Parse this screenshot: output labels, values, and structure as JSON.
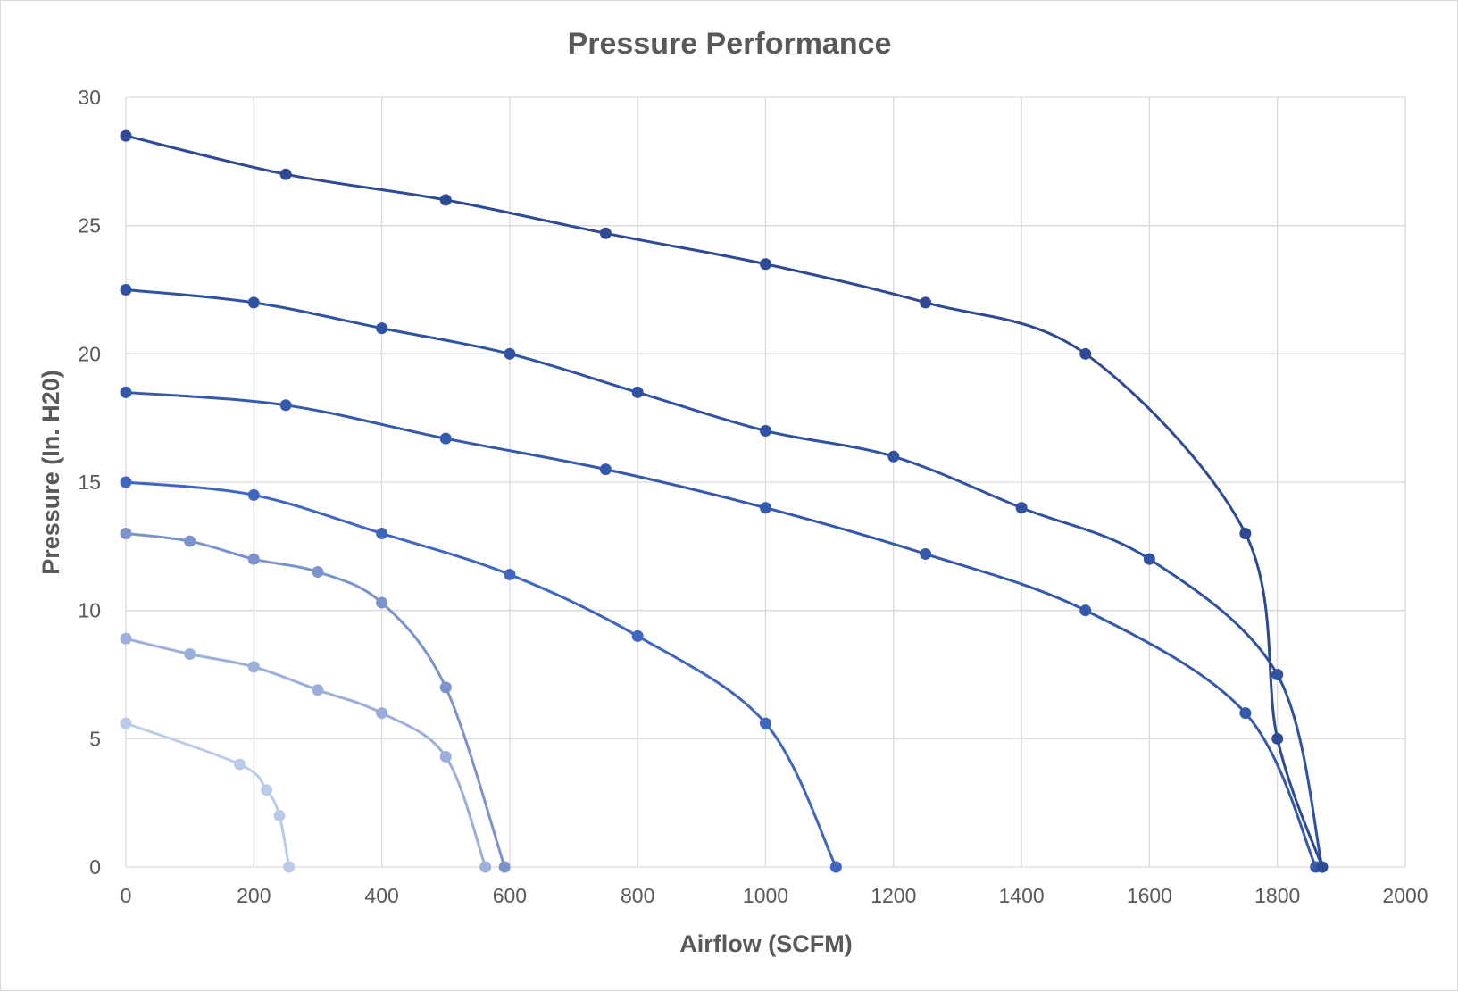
{
  "chart_data": {
    "type": "line",
    "title": "Pressure Performance",
    "xlabel": "Airflow (SCFM)",
    "ylabel": "Pressure (In. H20)",
    "xlim": [
      0,
      2000
    ],
    "ylim": [
      0,
      30
    ],
    "x_ticks": [
      "0",
      "200",
      "400",
      "600",
      "800",
      "1000",
      "1200",
      "1400",
      "1600",
      "1800",
      "2000"
    ],
    "y_ticks": [
      "0",
      "5",
      "10",
      "15",
      "20",
      "25",
      "30"
    ],
    "grid": true,
    "legend": "none",
    "smooth": true,
    "series": [
      {
        "color": "#2e4a94",
        "x": [
          0,
          250,
          500,
          750,
          1000,
          1250,
          1500,
          1750,
          1800,
          1870
        ],
        "y": [
          28.5,
          27.0,
          26.0,
          24.7,
          23.5,
          22.0,
          20.0,
          13.0,
          5.0,
          0
        ]
      },
      {
        "color": "#2f52a2",
        "x": [
          0,
          200,
          400,
          600,
          800,
          1000,
          1200,
          1400,
          1600,
          1800,
          1870
        ],
        "y": [
          22.5,
          22.0,
          21.0,
          20.0,
          18.5,
          17.0,
          16.0,
          14.0,
          12.0,
          7.5,
          0
        ]
      },
      {
        "color": "#3559ac",
        "x": [
          0,
          250,
          500,
          750,
          1000,
          1250,
          1500,
          1750,
          1860
        ],
        "y": [
          18.5,
          18.0,
          16.7,
          15.5,
          14.0,
          12.2,
          10.0,
          6.0,
          0
        ]
      },
      {
        "color": "#3f66c0",
        "x": [
          0,
          200,
          400,
          600,
          800,
          1000,
          1110
        ],
        "y": [
          15.0,
          14.5,
          13.0,
          11.4,
          9.0,
          5.6,
          0
        ]
      },
      {
        "color": "#7b93cc",
        "x": [
          0,
          100,
          200,
          300,
          400,
          500,
          592
        ],
        "y": [
          13.0,
          12.7,
          12.0,
          11.5,
          10.3,
          7.0,
          0
        ]
      },
      {
        "color": "#9bafdb",
        "x": [
          0,
          100,
          200,
          300,
          400,
          500,
          562
        ],
        "y": [
          8.9,
          8.3,
          7.8,
          6.9,
          6.0,
          4.3,
          0
        ]
      },
      {
        "color": "#bccaea",
        "x": [
          0,
          178,
          220,
          240,
          255
        ],
        "y": [
          5.6,
          4.0,
          3.0,
          2.0,
          0
        ]
      }
    ]
  }
}
